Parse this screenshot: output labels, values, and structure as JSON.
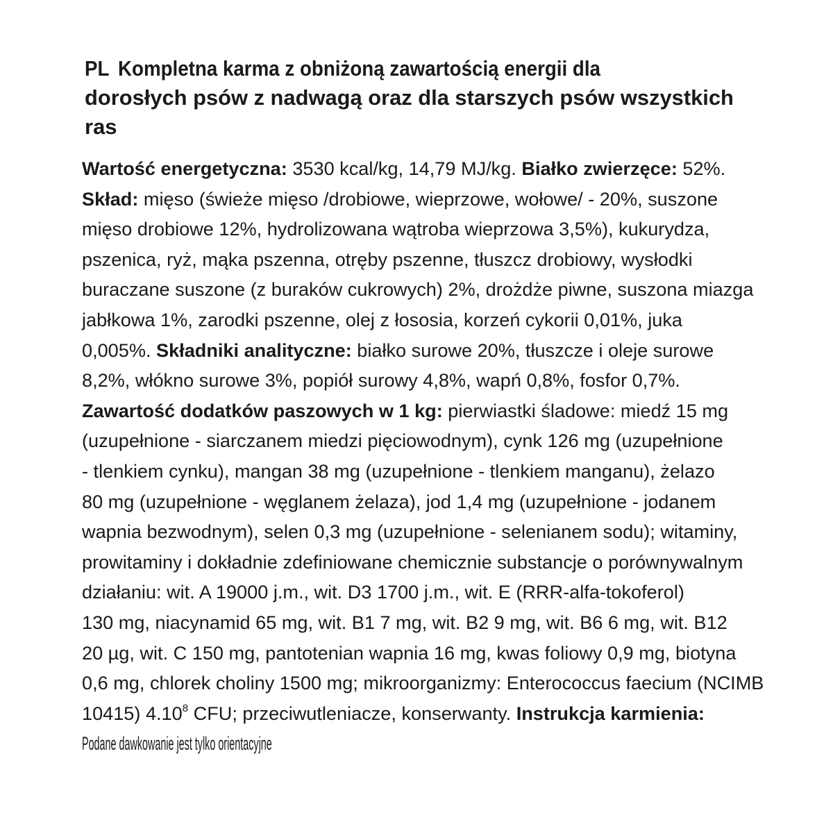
{
  "title": {
    "lang": "PL",
    "lines": [
      "Kompletna karma z obniżoną zawartością energii dla",
      "dorosłych psów z nadwagą oraz dla starszych psów wszystkich",
      "ras"
    ]
  },
  "body": {
    "lines": [
      [
        {
          "t": "Wartość energetyczna:",
          "b": true
        },
        {
          "t": " 3530 kcal/kg, 14,79 MJ/kg. "
        },
        {
          "t": "Białko zwierzęce:",
          "b": true
        },
        {
          "t": " 52%."
        }
      ],
      [
        {
          "t": "Skład:",
          "b": true
        },
        {
          "t": " mięso (świeże mięso /drobiowe, wieprzowe, wołowe/ - 20%, suszone"
        }
      ],
      [
        {
          "t": "mięso drobiowe 12%, hydrolizowana wątroba wieprzowa 3,5%), kukurydza,"
        }
      ],
      [
        {
          "t": "pszenica, ryż, mąka pszenna, otręby pszenne, tłuszcz drobiowy, wysłodki"
        }
      ],
      [
        {
          "t": "buraczane suszone (z buraków cukrowych) 2%, drożdże piwne, suszona miazga"
        }
      ],
      [
        {
          "t": "jabłkowa 1%, zarodki pszenne, olej z łososia, korzeń cykorii 0,01%, juka"
        }
      ],
      [
        {
          "t": "0,005%. "
        },
        {
          "t": "Składniki analityczne:",
          "b": true
        },
        {
          "t": " białko surowe 20%, tłuszcze i oleje surowe"
        }
      ],
      [
        {
          "t": "8,2%, włókno surowe 3%, popiół surowy 4,8%, wapń 0,8%, fosfor 0,7%."
        }
      ],
      [
        {
          "t": "Zawartość dodatków paszowych w 1 kg:",
          "b": true
        },
        {
          "t": " pierwiastki śladowe: miedź 15 mg"
        }
      ],
      [
        {
          "t": "(uzupełnione - siarczanem miedzi pięciowodnym), cynk 126 mg (uzupełnione"
        }
      ],
      [
        {
          "t": "- tlenkiem cynku), mangan 38 mg (uzupełnione - tlenkiem manganu), żelazo"
        }
      ],
      [
        {
          "t": "80 mg (uzupełnione - węglanem żelaza), jod 1,4 mg (uzupełnione - jodanem"
        }
      ],
      [
        {
          "t": "wapnia bezwodnym), selen 0,3 mg (uzupełnione - selenianem sodu); witaminy,"
        }
      ],
      [
        {
          "t": "prowitaminy i dokładnie zdefiniowane chemicznie substancje o porównywalnym"
        }
      ],
      [
        {
          "t": "działaniu: wit. A 19000 j.m., wit. D3 1700 j.m., wit. E (RRR-alfa-tokoferol)"
        }
      ],
      [
        {
          "t": "130 mg, niacynamid 65 mg, wit. B1 7 mg, wit. B2 9 mg, wit. B6 6 mg, wit. B12"
        }
      ],
      [
        {
          "t": "20 µg, wit. C 150 mg, pantotenian wapnia 16 mg, kwas foliowy 0,9 mg, biotyna"
        }
      ],
      [
        {
          "t": "0,6 mg, chlorek choliny 1500 mg; mikroorganizmy: Enterococcus faecium (NCIMB"
        }
      ],
      [
        {
          "t": "10415) 4.10"
        },
        {
          "t": "8",
          "sup": true
        },
        {
          "t": " CFU; przeciwutleniacze, konserwanty. "
        },
        {
          "t": "Instrukcja karmienia:",
          "b": true
        }
      ],
      [
        {
          "t": "Podane dawkowanie jest tylko orientacyjne"
        }
      ]
    ]
  }
}
